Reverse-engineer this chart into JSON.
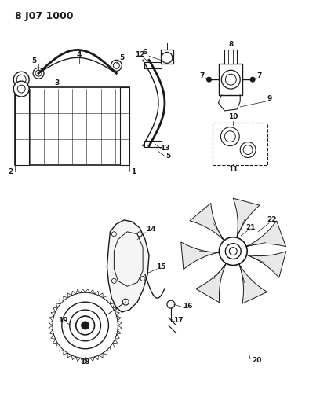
{
  "title": "8 J07 1000",
  "bg_color": "#ffffff",
  "line_color": "#1a1a1a",
  "title_fontsize": 9,
  "label_fontsize": 6.5
}
